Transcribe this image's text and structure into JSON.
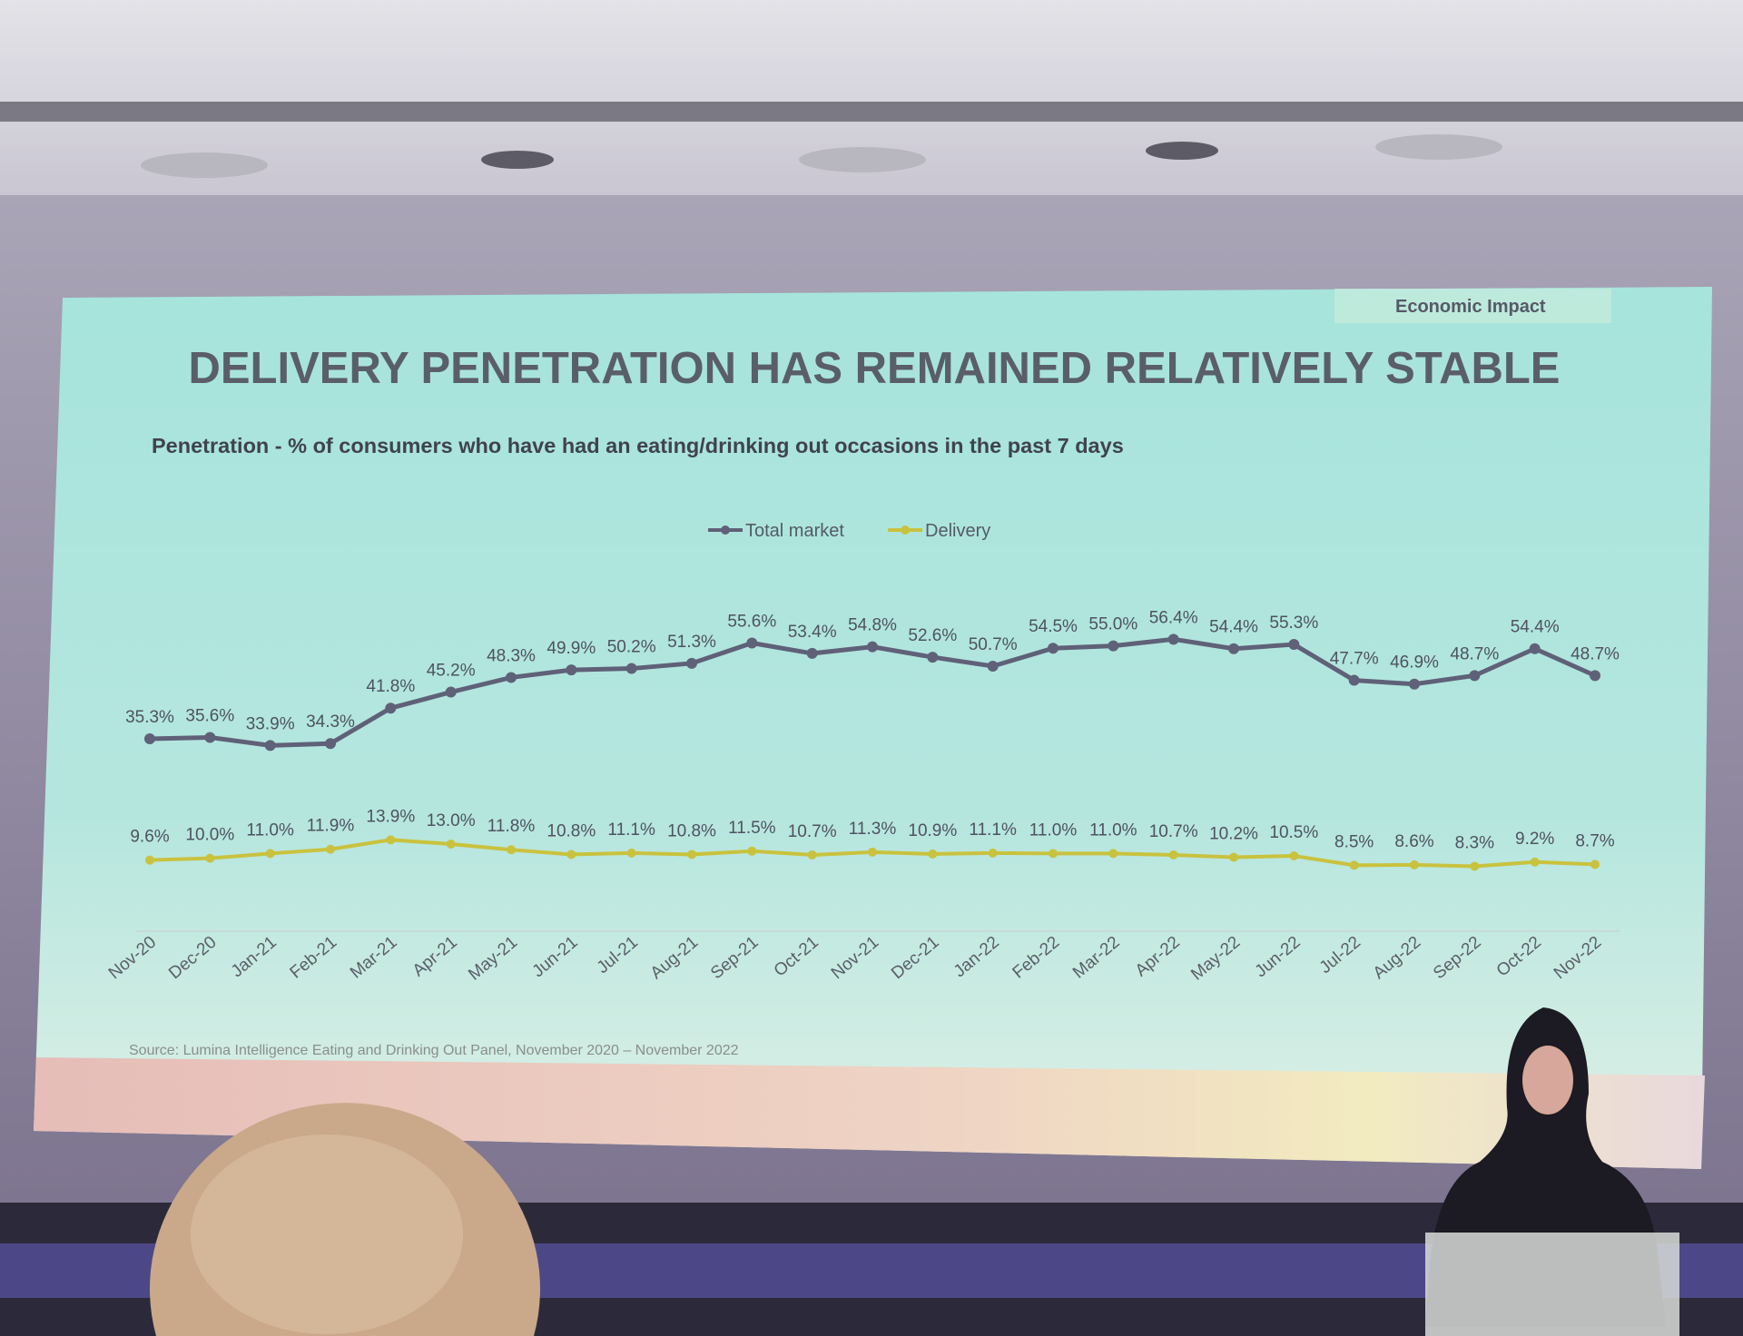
{
  "slide": {
    "section_tag": "Economic Impact",
    "title": "DELIVERY PENETRATION HAS REMAINED RELATIVELY STABLE",
    "subtitle": "Penetration - % of consumers who have had an eating/drinking out occasions in the past 7 days",
    "source": "Source: Lumina Intelligence Eating and Drinking Out Panel, November 2020 – November 2022"
  },
  "chart_data": {
    "type": "line",
    "title": "Penetration - % of consumers who have had an eating/drinking out occasions in the past 7 days",
    "xlabel": "",
    "ylabel": "",
    "legend_position": "top-center",
    "grid": false,
    "categories": [
      "Nov-20",
      "Dec-20",
      "Jan-21",
      "Feb-21",
      "Mar-21",
      "Apr-21",
      "May-21",
      "Jun-21",
      "Jul-21",
      "Aug-21",
      "Sep-21",
      "Oct-21",
      "Nov-21",
      "Dec-21",
      "Jan-22",
      "Feb-22",
      "Mar-22",
      "Apr-22",
      "May-22",
      "Jun-22",
      "Jul-22",
      "Aug-22",
      "Sep-22",
      "Oct-22",
      "Nov-22"
    ],
    "series": [
      {
        "name": "Total market",
        "color": "#5f6178",
        "values": [
          35.3,
          35.6,
          33.9,
          34.3,
          41.8,
          45.2,
          48.3,
          49.9,
          50.2,
          51.3,
          55.6,
          53.4,
          54.8,
          52.6,
          50.7,
          54.5,
          55.0,
          56.4,
          54.4,
          55.3,
          47.7,
          46.9,
          48.7,
          54.4,
          48.7
        ]
      },
      {
        "name": "Delivery",
        "color": "#c9c23e",
        "values": [
          9.6,
          10.0,
          11.0,
          11.9,
          13.9,
          13.0,
          11.8,
          10.8,
          11.1,
          10.8,
          11.5,
          10.7,
          11.3,
          10.9,
          11.1,
          11.0,
          11.0,
          10.7,
          10.2,
          10.5,
          8.5,
          8.6,
          8.3,
          9.2,
          8.7
        ]
      }
    ],
    "unit": "%"
  }
}
